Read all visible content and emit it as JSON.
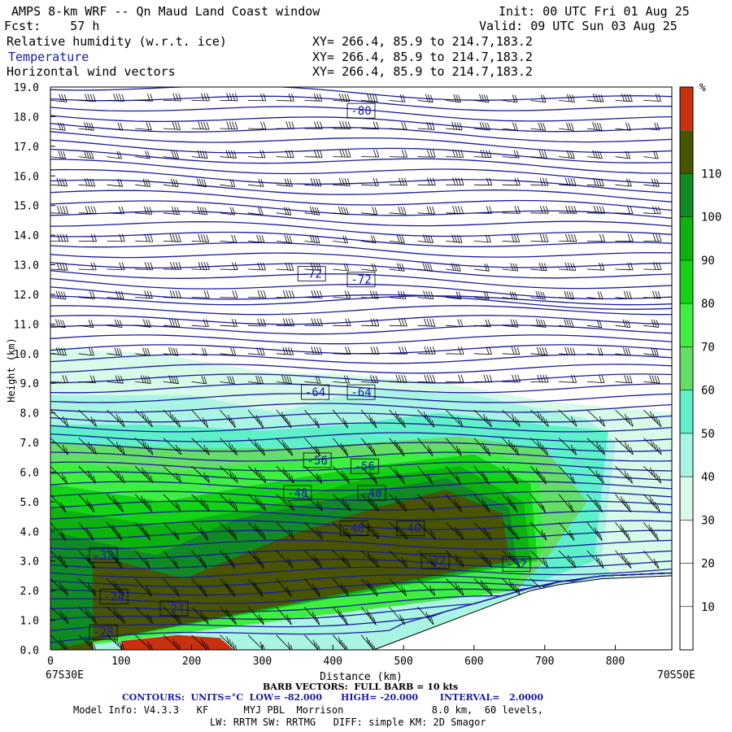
{
  "header": {
    "title": "AMPS 8-km WRF -- Qn Maud Land Coast window",
    "init": "Init: 00 UTC Fri 01 Aug 25",
    "fcst": "Fcst:    57 h",
    "valid": "Valid: 09 UTC Sun 03 Aug 25",
    "fields": [
      {
        "label": "Relative humidity (w.r.t. ice)",
        "xy": "XY= 266.4, 85.9 to 214.7,183.2"
      },
      {
        "label": "Temperature",
        "xy": "XY= 266.4, 85.9 to 214.7,183.2"
      },
      {
        "label": "Horizontal wind vectors",
        "xy": "XY= 266.4, 85.9 to 214.7,183.2"
      }
    ]
  },
  "colors": {
    "contour": "#1a1aa0",
    "terrain": "#ffffff",
    "rh_bands": [
      "#ffffff",
      "#ffffff",
      "#ffffff",
      "#d8fbe9",
      "#aaf4e4",
      "#5ef0c8",
      "#66dd66",
      "#3fef3f",
      "#14d214",
      "#0eb20e",
      "#108a22",
      "#485400",
      "#c83010"
    ]
  },
  "chart_data": {
    "type": "heatmap",
    "xlabel": "Distance (km)",
    "ylabel": "Height (km)",
    "xlim": [
      0,
      880
    ],
    "ylim": [
      0,
      19
    ],
    "x_ticks": [
      0,
      100,
      200,
      300,
      400,
      500,
      600,
      700,
      800
    ],
    "y_ticks": [
      "0.0",
      "1.0",
      "2.0",
      "3.0",
      "4.0",
      "5.0",
      "6.0",
      "7.0",
      "8.0",
      "9.0",
      "10.0",
      "11.0",
      "12.0",
      "13.0",
      "14.0",
      "15.0",
      "16.0",
      "17.0",
      "18.0",
      "19.0"
    ],
    "left_end_label": "67S30E",
    "right_end_label": "70S50E",
    "colorbar": {
      "unit": "%",
      "ticks": [
        10,
        20,
        30,
        40,
        50,
        60,
        70,
        80,
        90,
        100,
        110
      ]
    },
    "temperature_contour_labels": [
      {
        "value": "-80",
        "x": 440,
        "y": 18.2
      },
      {
        "value": "-72",
        "x": 370,
        "y": 12.7
      },
      {
        "value": "-72",
        "x": 440,
        "y": 12.5
      },
      {
        "value": "-64",
        "x": 375,
        "y": 8.7
      },
      {
        "value": "-64",
        "x": 440,
        "y": 8.7
      },
      {
        "value": "-56",
        "x": 378,
        "y": 6.4
      },
      {
        "value": "-56",
        "x": 445,
        "y": 6.2
      },
      {
        "value": "-48",
        "x": 350,
        "y": 5.3
      },
      {
        "value": "-48",
        "x": 455,
        "y": 5.3
      },
      {
        "value": "-40",
        "x": 430,
        "y": 4.1
      },
      {
        "value": "-40",
        "x": 510,
        "y": 4.1
      },
      {
        "value": "-32",
        "x": 545,
        "y": 3.0
      },
      {
        "value": "-32",
        "x": 660,
        "y": 2.9
      },
      {
        "value": "-32",
        "x": 75,
        "y": 3.2
      },
      {
        "value": "-24",
        "x": 90,
        "y": 1.8
      },
      {
        "value": "-24",
        "x": 175,
        "y": 1.4
      },
      {
        "value": "-28",
        "x": 75,
        "y": 0.6
      }
    ],
    "terrain_height_km": [
      [
        0,
        0
      ],
      [
        460,
        0
      ],
      [
        480,
        0.4
      ],
      [
        500,
        0.8
      ],
      [
        560,
        1.2
      ],
      [
        620,
        1.6
      ],
      [
        680,
        2.0
      ],
      [
        720,
        2.2
      ],
      [
        780,
        2.4
      ],
      [
        880,
        2.5
      ]
    ]
  },
  "footer": {
    "barb": "BARB VECTORS:  FULL BARB = 10 kts",
    "contours": "CONTOURS:  UNITS=°C  LOW= -82.000      HIGH= -20.000       INTERVAL=   2.0000",
    "model1": "Model Info: V4.3.3   KF      MYJ PBL  Morrison               8.0 km,  60 levels,",
    "model2": "LW: RRTM SW: RRTMG   DIFF: simple KM: 2D Smagor"
  }
}
